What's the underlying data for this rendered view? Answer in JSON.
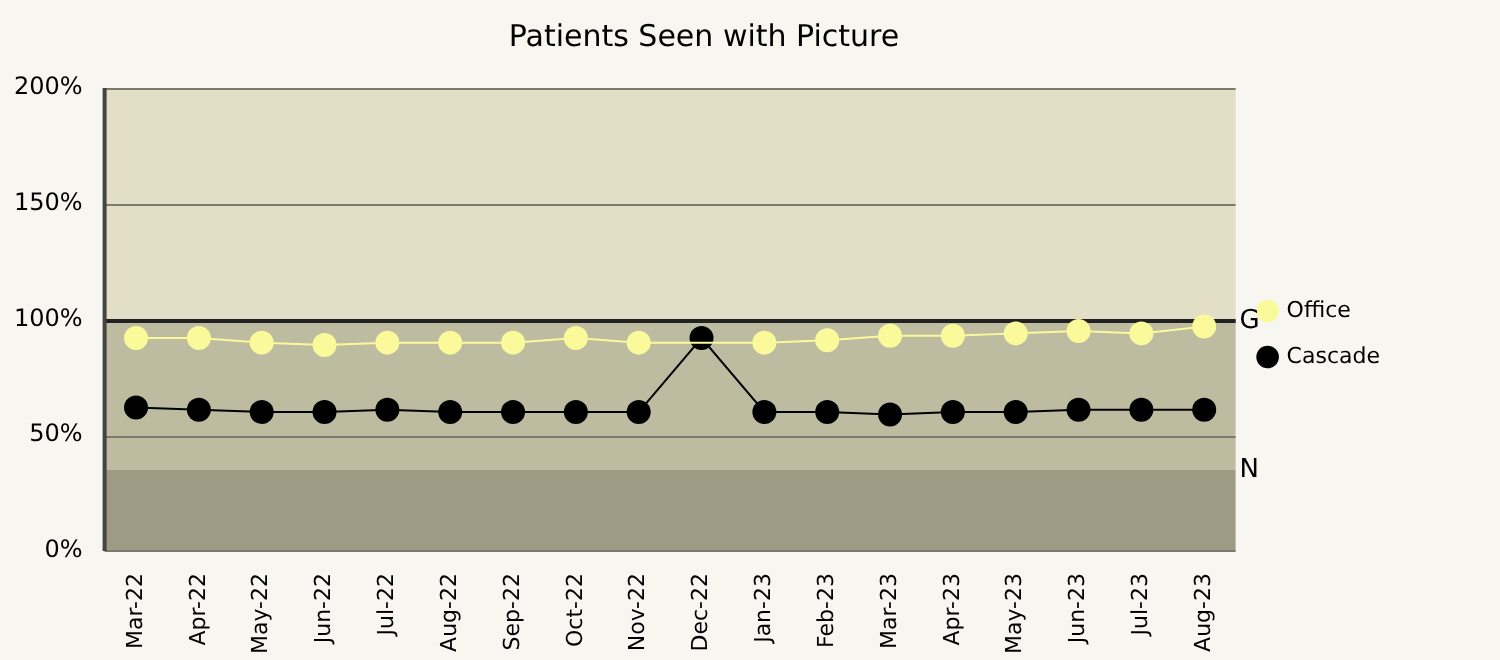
{
  "chart_data": {
    "type": "line",
    "title": "Patients Seen with Picture",
    "categories": [
      "Mar-22",
      "Apr-22",
      "May-22",
      "Jun-22",
      "Jul-22",
      "Aug-22",
      "Sep-22",
      "Oct-22",
      "Nov-22",
      "Dec-22",
      "Jan-23",
      "Feb-23",
      "Mar-23",
      "Apr-23",
      "May-23",
      "Jun-23",
      "Jul-23",
      "Aug-23"
    ],
    "series": [
      {
        "name": "Office",
        "color": "#fbfa9a",
        "values": [
          92,
          92,
          90,
          89,
          90,
          90,
          90,
          92,
          90,
          null,
          90,
          91,
          93,
          93,
          94,
          95,
          94,
          97
        ]
      },
      {
        "name": "Cascade",
        "color": "#000000",
        "values": [
          62,
          61,
          60,
          60,
          61,
          60,
          60,
          60,
          60,
          92,
          60,
          60,
          59,
          60,
          60,
          61,
          61,
          61
        ]
      }
    ],
    "ylim": [
      0,
      200
    ],
    "yticks": [
      {
        "value": 0,
        "label": "0%"
      },
      {
        "value": 50,
        "label": "50%"
      },
      {
        "value": 100,
        "label": "100%"
      },
      {
        "value": 150,
        "label": "150%"
      },
      {
        "value": 200,
        "label": "200%"
      }
    ],
    "grid": "y",
    "legend": "right",
    "marker": "circle",
    "line_style": "solid",
    "bands": [
      {
        "axis": "y",
        "from": 0,
        "to": 35,
        "label": "N",
        "color": "#9e9b85"
      },
      {
        "axis": "y",
        "from": 35,
        "to": 100,
        "label": null,
        "color": "#bdbca0"
      },
      {
        "axis": "y",
        "from": 100,
        "to": 200,
        "label": null,
        "color": "#e3dfc6"
      }
    ],
    "ref_lines": [
      {
        "axis": "y",
        "value": 100,
        "label": "G",
        "color": "#222222"
      }
    ]
  }
}
